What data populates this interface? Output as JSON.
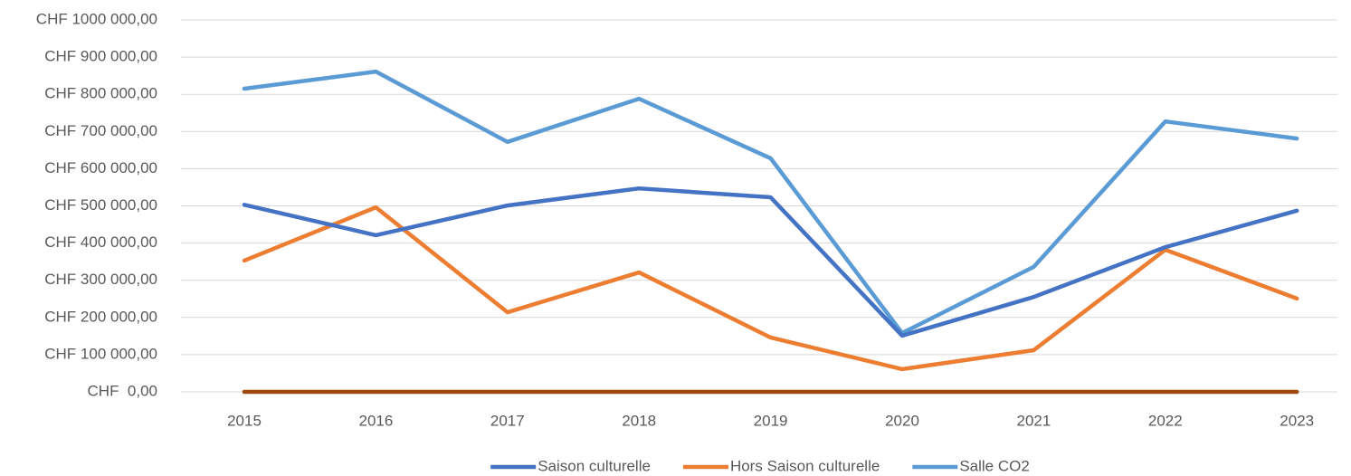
{
  "chart_data": {
    "type": "line",
    "categories": [
      "2015",
      "2016",
      "2017",
      "2018",
      "2019",
      "2020",
      "2021",
      "2022",
      "2023"
    ],
    "series": [
      {
        "name": "Saison culturelle",
        "color": "#4472c4",
        "values": [
          503000,
          421000,
          501000,
          547000,
          523000,
          151000,
          255000,
          389000,
          487000
        ]
      },
      {
        "name": "Hors Saison culturelle",
        "color": "#ed7d31",
        "values": [
          353000,
          496000,
          214000,
          321000,
          146000,
          61000,
          112000,
          382000,
          251000
        ]
      },
      {
        "name": "Salle CO2",
        "color": "#5b9bd5",
        "values": [
          815000,
          861000,
          672000,
          788000,
          628000,
          158000,
          336000,
          727000,
          681000
        ]
      },
      {
        "color": "#9e480e",
        "values": [
          0,
          0,
          0,
          0,
          0,
          0,
          0,
          0,
          0
        ]
      }
    ],
    "ylim": [
      0,
      1000000
    ],
    "yticks": [
      {
        "value": 0,
        "label": "CHF  0,00"
      },
      {
        "value": 100000,
        "label": "CHF 100 000,00"
      },
      {
        "value": 200000,
        "label": "CHF 200 000,00"
      },
      {
        "value": 300000,
        "label": "CHF 300 000,00"
      },
      {
        "value": 400000,
        "label": "CHF 400 000,00"
      },
      {
        "value": 500000,
        "label": "CHF 500 000,00"
      },
      {
        "value": 600000,
        "label": "CHF 600 000,00"
      },
      {
        "value": 700000,
        "label": "CHF 700 000,00"
      },
      {
        "value": 800000,
        "label": "CHF 800 000,00"
      },
      {
        "value": 900000,
        "label": "CHF 900 000,00"
      },
      {
        "value": 1000000,
        "label": "CHF 1000 000,00"
      }
    ],
    "grid": true,
    "legend": "bottom"
  }
}
